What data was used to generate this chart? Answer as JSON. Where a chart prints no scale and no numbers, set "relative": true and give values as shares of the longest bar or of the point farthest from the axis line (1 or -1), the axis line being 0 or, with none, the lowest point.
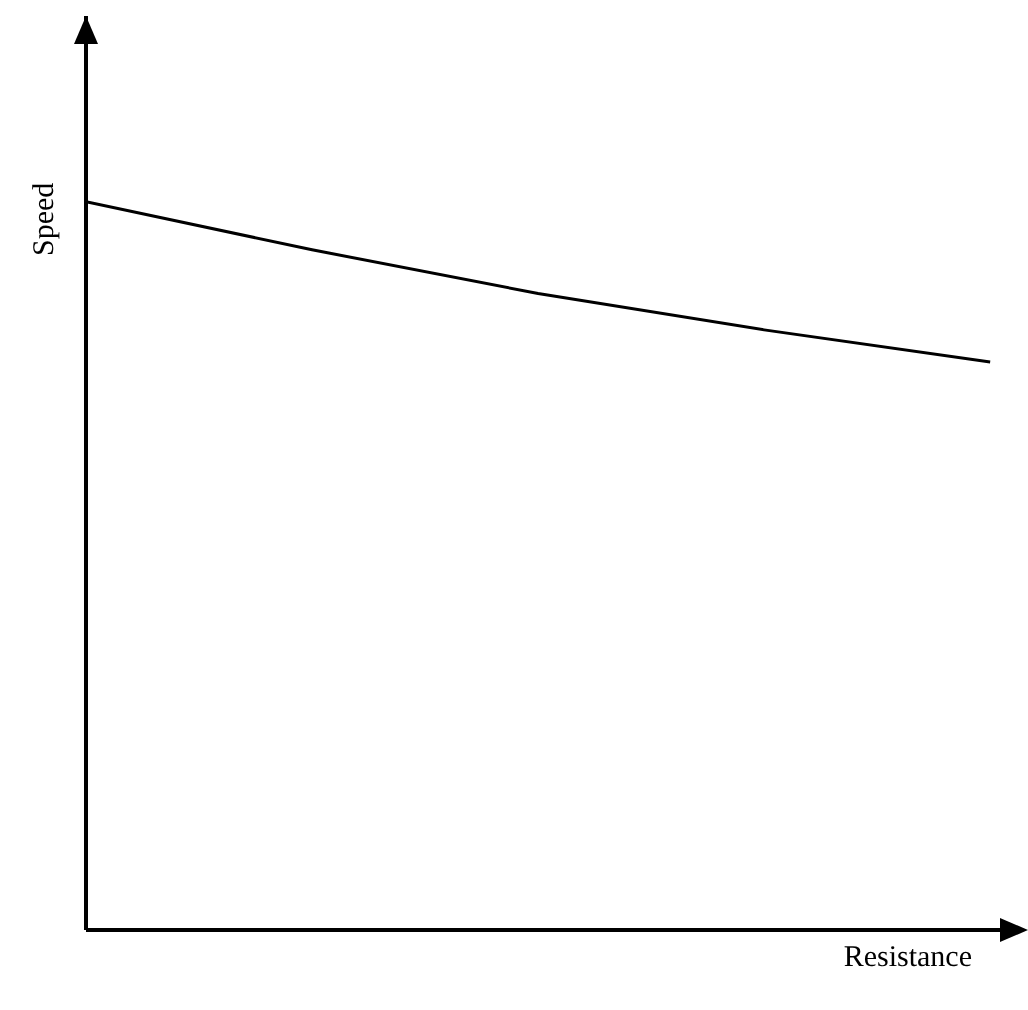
{
  "chart_data": {
    "type": "line",
    "relative": true,
    "xlabel": "Resistance",
    "ylabel": "Speed",
    "categories": [
      null,
      null,
      null,
      null,
      null
    ],
    "series": [
      {
        "color": "#000000",
        "values": [
          1,
          0.934,
          0.874,
          0.824,
          0.78
        ]
      }
    ],
    "grid": false,
    "legend": false,
    "marker": "none",
    "line_style": "solid"
  }
}
